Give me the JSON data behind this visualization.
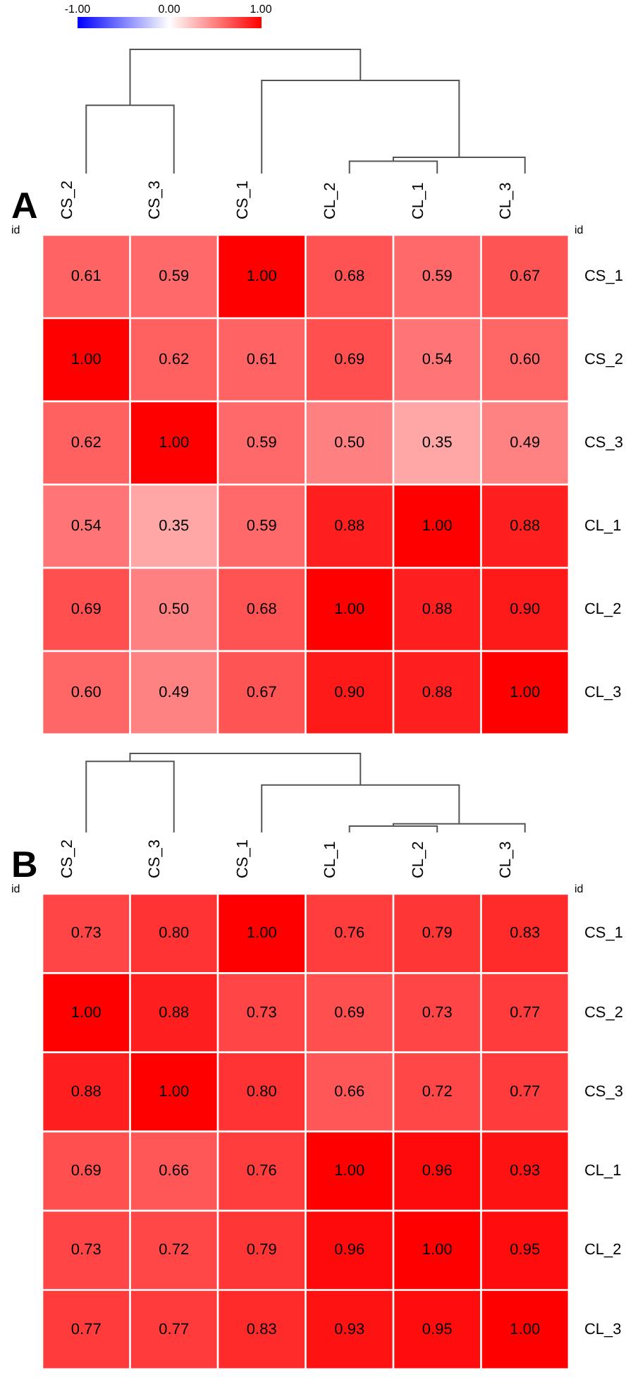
{
  "chart_data": [
    {
      "type": "heatmap",
      "title": "A",
      "ylabel": "id",
      "y2label": "id",
      "categories": [
        "CS_2",
        "CS_3",
        "CS_1",
        "CL_2",
        "CL_1",
        "CL_3"
      ],
      "y_categories": [
        "CS_1",
        "CS_2",
        "CS_3",
        "CL_1",
        "CL_2",
        "CL_3"
      ],
      "cells": [
        [
          0.61,
          0.59,
          1.0,
          0.68,
          0.59,
          0.67
        ],
        [
          1.0,
          0.62,
          0.61,
          0.69,
          0.54,
          0.6
        ],
        [
          0.62,
          1.0,
          0.59,
          0.5,
          0.35,
          0.49
        ],
        [
          0.54,
          0.35,
          0.59,
          0.88,
          1.0,
          0.88
        ],
        [
          0.69,
          0.5,
          0.68,
          1.0,
          0.88,
          0.9
        ],
        [
          0.6,
          0.49,
          0.67,
          0.9,
          0.88,
          1.0
        ]
      ],
      "cell_labels": [
        [
          "0.61",
          "0.59",
          "1.00",
          "0.68",
          "0.59",
          "0.67"
        ],
        [
          "1.00",
          "0.62",
          "0.61",
          "0.69",
          "0.54",
          "0.60"
        ],
        [
          "0.62",
          "1.00",
          "0.59",
          "0.50",
          "0.35",
          "0.49"
        ],
        [
          "0.54",
          "0.35",
          "0.59",
          "0.88",
          "1.00",
          "0.88"
        ],
        [
          "0.69",
          "0.50",
          "0.68",
          "1.00",
          "0.88",
          "0.90"
        ],
        [
          "0.60",
          "0.49",
          "0.67",
          "0.90",
          "0.88",
          "1.00"
        ]
      ],
      "clim": [
        -1,
        1
      ],
      "cticks": [
        {
          "value": -1,
          "label": "-1.00"
        },
        {
          "value": 0,
          "label": "0.00"
        },
        {
          "value": 1,
          "label": "1.00"
        }
      ]
    },
    {
      "type": "heatmap",
      "title": "B",
      "ylabel": "id",
      "y2label": "id",
      "categories": [
        "CS_2",
        "CS_3",
        "CS_1",
        "CL_1",
        "CL_2",
        "CL_3"
      ],
      "y_categories": [
        "CS_1",
        "CS_2",
        "CS_3",
        "CL_1",
        "CL_2",
        "CL_3"
      ],
      "cells": [
        [
          0.73,
          0.8,
          1.0,
          0.76,
          0.79,
          0.83
        ],
        [
          1.0,
          0.88,
          0.73,
          0.69,
          0.73,
          0.77
        ],
        [
          0.88,
          1.0,
          0.8,
          0.66,
          0.72,
          0.77
        ],
        [
          0.69,
          0.66,
          0.76,
          1.0,
          0.96,
          0.93
        ],
        [
          0.73,
          0.72,
          0.79,
          0.96,
          1.0,
          0.95
        ],
        [
          0.77,
          0.77,
          0.83,
          0.93,
          0.95,
          1.0
        ]
      ],
      "cell_labels": [
        [
          "0.73",
          "0.80",
          "1.00",
          "0.76",
          "0.79",
          "0.83"
        ],
        [
          "1.00",
          "0.88",
          "0.73",
          "0.69",
          "0.73",
          "0.77"
        ],
        [
          "0.88",
          "1.00",
          "0.80",
          "0.66",
          "0.72",
          "0.77"
        ],
        [
          "0.69",
          "0.66",
          "0.76",
          "1.00",
          "0.96",
          "0.93"
        ],
        [
          "0.73",
          "0.72",
          "0.79",
          "0.96",
          "1.00",
          "0.95"
        ],
        [
          "0.77",
          "0.77",
          "0.83",
          "0.93",
          "0.95",
          "1.00"
        ]
      ]
    }
  ]
}
